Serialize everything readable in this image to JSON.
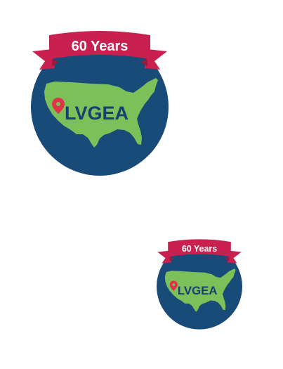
{
  "badges": [
    {
      "id": "large",
      "ribbon_text": "60 Years",
      "org_name": "LVGEA"
    },
    {
      "id": "small",
      "ribbon_text": "60 Years",
      "org_name": "LVGEA"
    }
  ],
  "colors": {
    "globe": "#194b78",
    "map": "#7cc05a",
    "ribbon": "#c8204f",
    "ribbon_dark": "#9c1a3d",
    "ribbon_text": "#ffffff",
    "org_text": "#173f70",
    "pin": "#e0334b"
  },
  "icons": {
    "pin": "map-pin-icon",
    "map": "usa-map-icon"
  }
}
